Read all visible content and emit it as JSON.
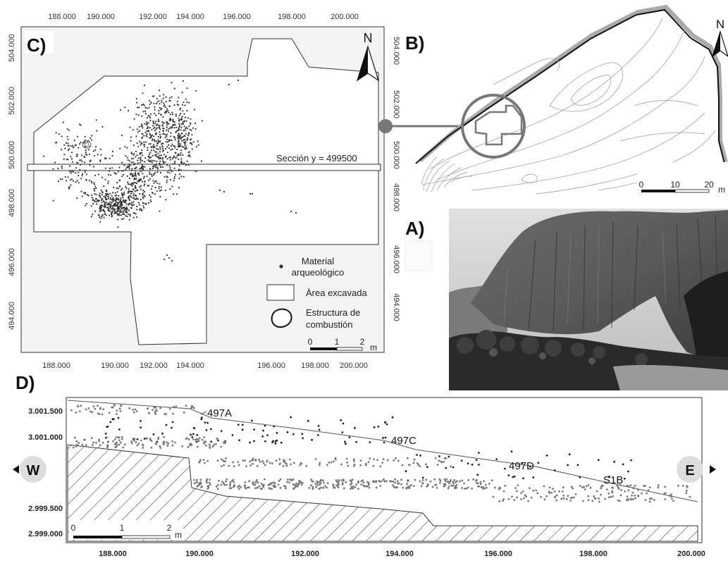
{
  "panel_c": {
    "label": "C)",
    "x_ticks": [
      "188.000",
      "190.000",
      "192.000",
      "194.000",
      "196.000",
      "198.000",
      "200.000"
    ],
    "y_ticks": [
      "504.000",
      "502.000",
      "500.000",
      "498.000",
      "496.000",
      "494.000"
    ],
    "section_label": "Sección y = 499500",
    "north": "N",
    "legend": {
      "material_1": "Material",
      "material_2": "arqueológico",
      "area": "Área excavada",
      "struct_1": "Estructura de",
      "struct_2": "combustión"
    },
    "scale": {
      "zero": "0",
      "one": "1",
      "two": "2",
      "unit": "m"
    }
  },
  "panel_b": {
    "label": "B)",
    "north": "N",
    "y_ticks": [
      "504.000",
      "502.000",
      "500.000",
      "498.000",
      "496.000",
      "494.000"
    ],
    "scale": {
      "zero": "0",
      "ten": "10",
      "twenty": "20",
      "unit": "m"
    }
  },
  "panel_a": {
    "label": "A)"
  },
  "panel_d": {
    "label": "D)",
    "west": "W",
    "east": "E",
    "y_ticks": [
      "3.001.500",
      "3.001.000",
      "2.999.500",
      "2.999.000"
    ],
    "x_ticks": [
      "188.000",
      "190.000",
      "192.000",
      "194.000",
      "196.000",
      "198.000",
      "200.000"
    ],
    "units": [
      "497A",
      "497C",
      "497D",
      "S1B"
    ],
    "scale": {
      "zero": "0",
      "one": "1",
      "two": "2",
      "unit": "m"
    }
  }
}
